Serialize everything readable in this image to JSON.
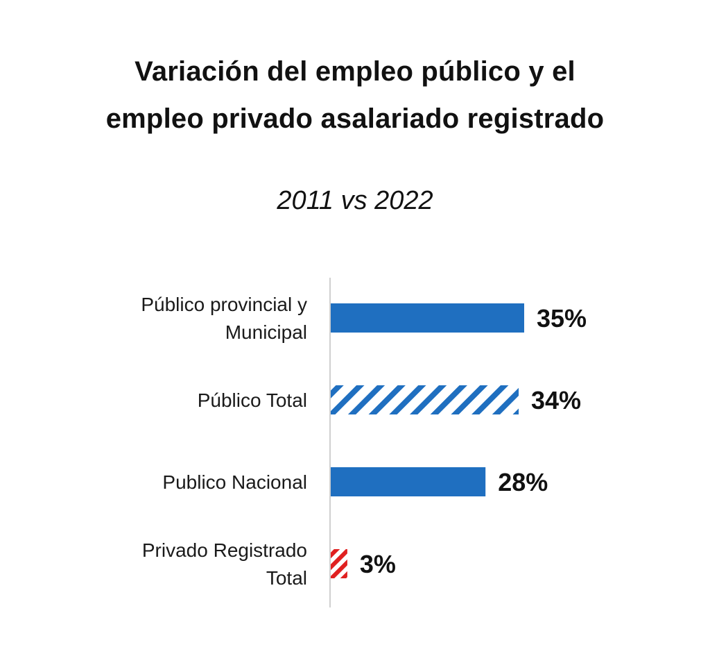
{
  "chart_data": {
    "type": "bar",
    "orientation": "horizontal",
    "title": "Variación del empleo público y el empleo privado asalariado registrado",
    "title_lines": [
      "Variación del empleo público y el",
      "empleo privado asalariado registrado"
    ],
    "subtitle": "2011 vs 2022",
    "categories": [
      [
        "Público provincial y",
        "Municipal"
      ],
      [
        "Público Total"
      ],
      [
        "Publico Nacional"
      ],
      [
        "Privado Registrado",
        "Total"
      ]
    ],
    "values": [
      35,
      34,
      28,
      3
    ],
    "value_labels": [
      "35%",
      "34%",
      "28%",
      "3%"
    ],
    "unit": "%",
    "xlim": [
      0,
      35
    ],
    "bar_styles": [
      "solid",
      "hatched",
      "solid",
      "hatched"
    ],
    "bar_colors": [
      "#1F6FC0",
      "#1F6FC0",
      "#1F6FC0",
      "#E02020"
    ],
    "xlabel": "",
    "ylabel": "",
    "grid": false,
    "legend": "none"
  }
}
